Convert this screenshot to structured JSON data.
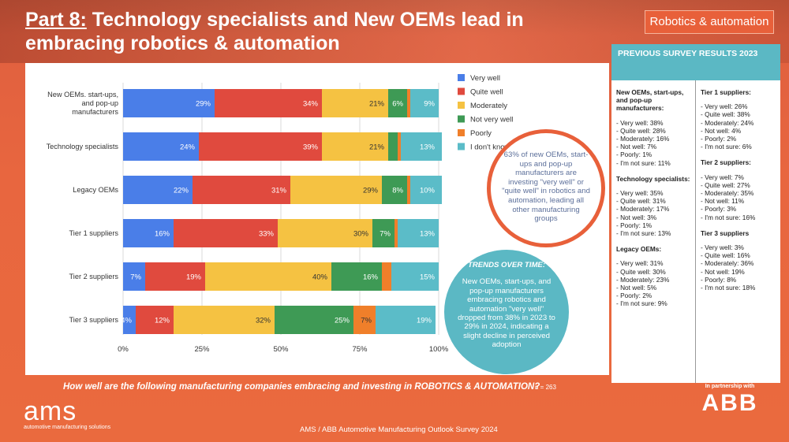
{
  "title": {
    "part": "Part 8:",
    "text": " Technology specialists and New OEMs lead in embracing robotics & automation"
  },
  "tag": "Robotics & automation",
  "colors": {
    "very_well": "#4a7ee8",
    "quite_well": "#e04a3e",
    "moderately": "#f5c242",
    "not_very_well": "#3e9a55",
    "poorly": "#f07f2a",
    "dont_know": "#5bbcc8"
  },
  "chart_data": {
    "type": "bar",
    "orientation": "horizontal",
    "stacked": true,
    "categories": [
      "New OEMs. start-ups, and pop-up manufacturers",
      "Technology specialists",
      "Legacy OEMs",
      "Tier 1 suppliers",
      "Tier 2 suppliers",
      "Tier 3 suppliers"
    ],
    "category_lines": [
      [
        "New OEMs. start-ups,",
        "and pop-up",
        "manufacturers"
      ],
      [
        "Technology specialists"
      ],
      [
        "Legacy OEMs"
      ],
      [
        "Tier 1 suppliers"
      ],
      [
        "Tier 2 suppliers"
      ],
      [
        "Tier 3 suppliers"
      ]
    ],
    "series": [
      {
        "name": "Very well",
        "values": [
          29,
          24,
          22,
          16,
          7,
          4
        ],
        "labels": [
          "29%",
          "24%",
          "22%",
          "16%",
          "7%",
          "4%"
        ]
      },
      {
        "name": "Quite well",
        "values": [
          34,
          39,
          31,
          33,
          19,
          12
        ],
        "labels": [
          "34%",
          "39%",
          "31%",
          "33%",
          "19%",
          "12%"
        ]
      },
      {
        "name": "Moderately",
        "values": [
          21,
          21,
          29,
          30,
          40,
          32
        ],
        "labels": [
          "21%",
          "21%",
          "29%",
          "30%",
          "40%",
          "32%"
        ]
      },
      {
        "name": "Not very well",
        "values": [
          6,
          3,
          8,
          7,
          16,
          25
        ],
        "labels": [
          "6%",
          "3%",
          "8%",
          "7%",
          "16%",
          "25%"
        ]
      },
      {
        "name": "Poorly",
        "values": [
          1,
          1,
          1,
          1,
          3,
          7
        ],
        "labels": [
          "1%",
          "1%",
          "1%",
          "1%",
          "3%",
          "7%"
        ]
      },
      {
        "name": "I don't know",
        "values": [
          9,
          13,
          10,
          13,
          15,
          19
        ],
        "labels": [
          "9%",
          "13%",
          "10%",
          "13%",
          "15%",
          "19%"
        ]
      }
    ],
    "legend_labels": [
      "Very well",
      "Quite well",
      "Moderately",
      "Not very well",
      "Poorly",
      "I don't know"
    ],
    "xticks": [
      "0%",
      "25%",
      "50%",
      "75%",
      "100%"
    ],
    "xlim": [
      0,
      100
    ],
    "legend_position": "right"
  },
  "side": {
    "heading": "PREVIOUS SURVEY RESULTS 2023",
    "left": [
      {
        "title": "New OEMs, start-ups, and pop-up manufacturers:",
        "items": [
          "- Very well: 38%",
          "- Quite well: 28%",
          "- Moderately: 16%",
          "- Not well: 7%",
          "- Poorly: 1%",
          "- I'm not sure: 11%"
        ]
      },
      {
        "title": "Technology specialists:",
        "items": [
          "- Very well: 35%",
          "- Quite well: 31%",
          "- Moderately: 17%",
          "- Not well: 3%",
          "- Poorly: 1%",
          "- I'm not sure: 13%"
        ]
      },
      {
        "title": "Legacy OEMs:",
        "items": [
          "- Very well: 31%",
          "- Quite well: 30%",
          "- Moderately: 23%",
          "- Not well: 5%",
          "- Poorly: 2%",
          "- I'm not sure: 9%"
        ]
      }
    ],
    "right": [
      {
        "title": "Tier 1 suppliers:",
        "items": [
          "- Very well: 26%",
          "- Quite well: 38%",
          "- Moderately: 24%",
          "- Not well: 4%",
          "- Poorly: 2%",
          "- I'm not sure: 6%"
        ]
      },
      {
        "title": "Tier 2 suppliers:",
        "items": [
          "- Very well: 7%",
          "- Quite well: 27%",
          "- Moderately: 35%",
          "- Not well: 11%",
          "- Poorly: 3%",
          "- I'm not sure: 16%"
        ]
      },
      {
        "title": "Tier 3 suppliers",
        "items": [
          "- Very well: 3%",
          "- Quite well: 16%",
          "- Moderately: 36%",
          "- Not well: 19%",
          "- Poorly: 8%",
          "- I'm not sure: 18%"
        ]
      }
    ]
  },
  "callout": "63% of new OEMs, start-ups and pop-up manufacturers are investing \"very well\" or \"quite well\" in robotics and automation, leading all other manufacturing groups",
  "trends": {
    "title": "TRENDS OVER TIME:",
    "text": "New OEMs, start-ups, and pop-up manufacturers embracing robotics and automation \"very well\" dropped from 38% in 2023 to 29% in 2024, indicating a slight decline in perceived adoption"
  },
  "question": "How well are the following manufacturing companies embracing and investing in ROBOTICS & AUTOMATION?",
  "n": "n = 263",
  "logo": {
    "name": "ams",
    "sub": "automotive manufacturing solutions"
  },
  "footer": "AMS / ABB Automotive Manufacturing Outlook Survey 2024",
  "partner": {
    "label": "In partnership with",
    "name": "ABB"
  }
}
